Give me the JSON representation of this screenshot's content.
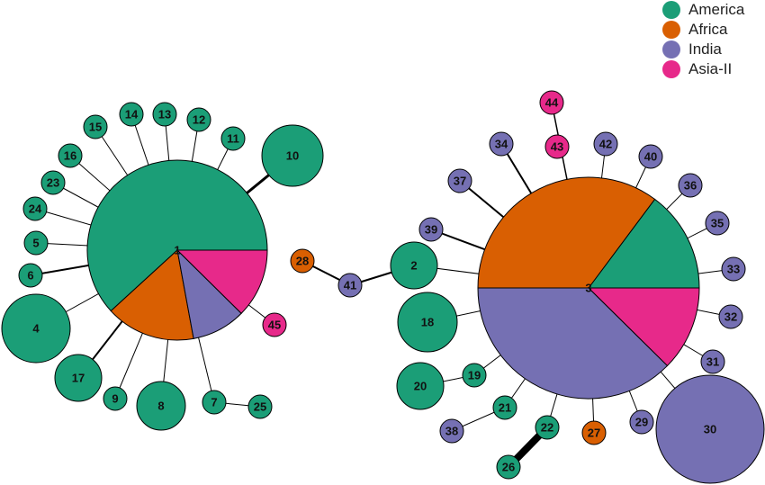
{
  "legend": [
    {
      "label": "America",
      "color": "#1b9e77"
    },
    {
      "label": "Africa",
      "color": "#d95f02"
    },
    {
      "label": "India",
      "color": "#7570b3"
    },
    {
      "label": "Asia-II",
      "color": "#e7298a"
    }
  ],
  "nodes": [
    {
      "id": "1",
      "slices": [
        {
          "region": "America",
          "fraction": 0.618
        },
        {
          "region": "Africa",
          "fraction": 0.161
        },
        {
          "region": "India",
          "fraction": 0.097
        },
        {
          "region": "Asia-II",
          "fraction": 0.124
        }
      ]
    },
    {
      "id": "3",
      "slices": [
        {
          "region": "America",
          "fraction": 0.148
        },
        {
          "region": "Africa",
          "fraction": 0.352
        },
        {
          "region": "India",
          "fraction": 0.376
        },
        {
          "region": "Asia-II",
          "fraction": 0.124
        }
      ]
    },
    {
      "id": "2",
      "region": "America"
    },
    {
      "id": "4",
      "region": "America"
    },
    {
      "id": "5",
      "region": "America"
    },
    {
      "id": "6",
      "region": "America"
    },
    {
      "id": "7",
      "region": "America"
    },
    {
      "id": "8",
      "region": "America"
    },
    {
      "id": "9",
      "region": "America"
    },
    {
      "id": "10",
      "region": "America"
    },
    {
      "id": "11",
      "region": "America"
    },
    {
      "id": "12",
      "region": "America"
    },
    {
      "id": "13",
      "region": "America"
    },
    {
      "id": "14",
      "region": "America"
    },
    {
      "id": "15",
      "region": "America"
    },
    {
      "id": "16",
      "region": "America"
    },
    {
      "id": "17",
      "region": "America"
    },
    {
      "id": "18",
      "region": "America"
    },
    {
      "id": "19",
      "region": "America"
    },
    {
      "id": "20",
      "region": "America"
    },
    {
      "id": "21",
      "region": "America"
    },
    {
      "id": "22",
      "region": "America"
    },
    {
      "id": "23",
      "region": "America"
    },
    {
      "id": "24",
      "region": "America"
    },
    {
      "id": "25",
      "region": "America"
    },
    {
      "id": "26",
      "region": "America"
    },
    {
      "id": "27",
      "region": "Africa"
    },
    {
      "id": "28",
      "region": "Africa"
    },
    {
      "id": "29",
      "region": "India"
    },
    {
      "id": "30",
      "region": "India"
    },
    {
      "id": "31",
      "region": "India"
    },
    {
      "id": "32",
      "region": "India"
    },
    {
      "id": "33",
      "region": "India"
    },
    {
      "id": "34",
      "region": "India"
    },
    {
      "id": "35",
      "region": "India"
    },
    {
      "id": "36",
      "region": "India"
    },
    {
      "id": "37",
      "region": "India"
    },
    {
      "id": "38",
      "region": "India"
    },
    {
      "id": "39",
      "region": "India"
    },
    {
      "id": "40",
      "region": "India"
    },
    {
      "id": "41",
      "region": "India"
    },
    {
      "id": "42",
      "region": "India"
    },
    {
      "id": "43",
      "region": "Asia-II"
    },
    {
      "id": "44",
      "region": "Asia-II"
    },
    {
      "id": "45",
      "region": "Asia-II"
    }
  ],
  "edges": [
    [
      "1",
      "4"
    ],
    [
      "1",
      "5"
    ],
    [
      "1",
      "6"
    ],
    [
      "1",
      "9"
    ],
    [
      "1",
      "8"
    ],
    [
      "1",
      "7"
    ],
    [
      "1",
      "17"
    ],
    [
      "1",
      "10"
    ],
    [
      "1",
      "11"
    ],
    [
      "1",
      "12"
    ],
    [
      "1",
      "13"
    ],
    [
      "1",
      "14"
    ],
    [
      "1",
      "15"
    ],
    [
      "1",
      "16"
    ],
    [
      "1",
      "23"
    ],
    [
      "1",
      "24"
    ],
    [
      "1",
      "45"
    ],
    [
      "7",
      "25"
    ],
    [
      "28",
      "41"
    ],
    [
      "41",
      "2"
    ],
    [
      "2",
      "3"
    ],
    [
      "3",
      "44"
    ],
    [
      "3",
      "34"
    ],
    [
      "3",
      "37"
    ],
    [
      "3",
      "39"
    ],
    [
      "3",
      "42"
    ],
    [
      "3",
      "40"
    ],
    [
      "3",
      "36"
    ],
    [
      "3",
      "35"
    ],
    [
      "3",
      "33"
    ],
    [
      "3",
      "32"
    ],
    [
      "3",
      "31"
    ],
    [
      "3",
      "30"
    ],
    [
      "3",
      "29"
    ],
    [
      "3",
      "27"
    ],
    [
      "3",
      "22"
    ],
    [
      "3",
      "21"
    ],
    [
      "3",
      "19"
    ],
    [
      "3",
      "18"
    ],
    [
      "22",
      "26"
    ],
    [
      "21",
      "38"
    ],
    [
      "19",
      "20"
    ]
  ]
}
